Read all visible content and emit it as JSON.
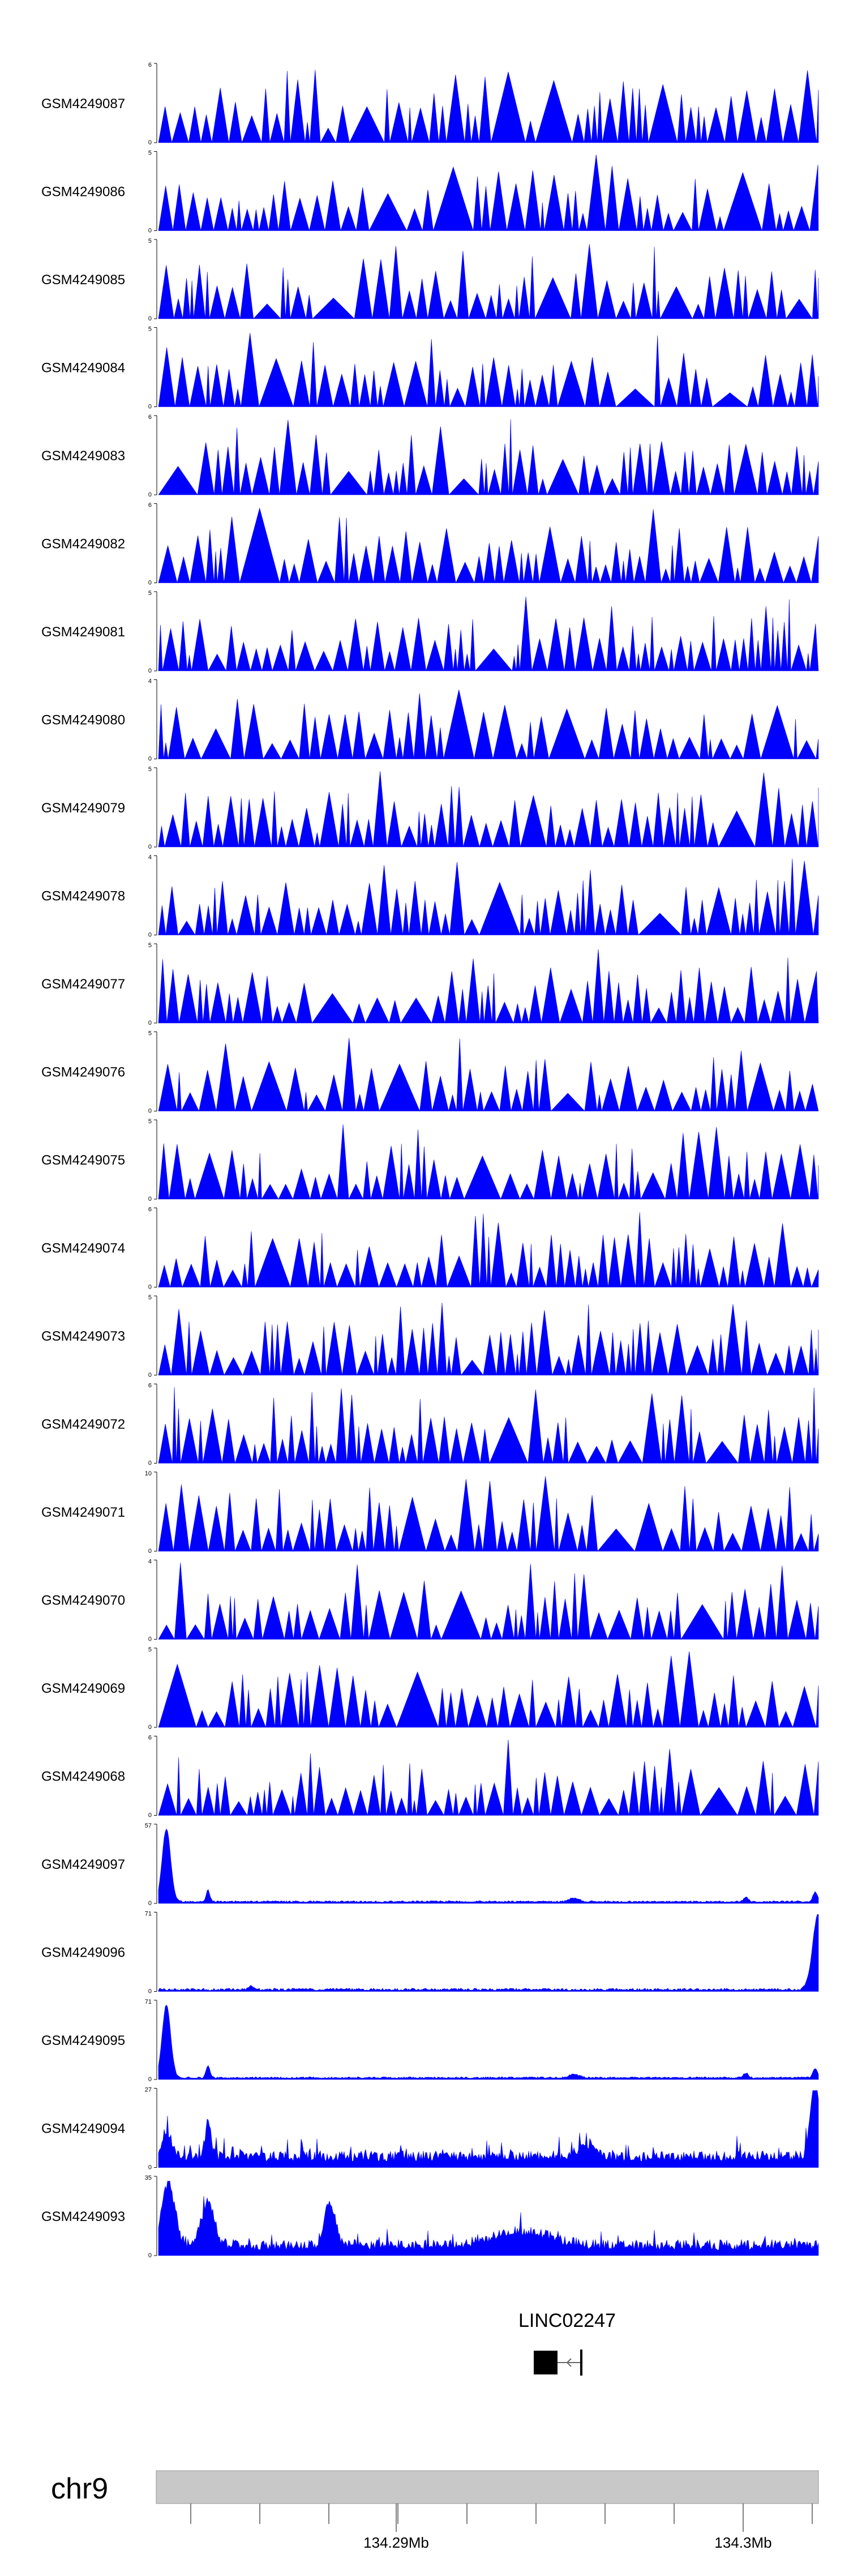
{
  "chart_data": {
    "type": "area",
    "color": "#0000ff",
    "chromosome": "chr9",
    "gene": "LINC02247",
    "x_ticks": [
      "134.29Mb",
      "134.3Mb"
    ],
    "tracks": [
      {
        "name": "GSM4249087",
        "ymax": "6",
        "ymin": "0",
        "style": "sparse"
      },
      {
        "name": "GSM4249086",
        "ymax": "5",
        "ymin": "0",
        "style": "sparse"
      },
      {
        "name": "GSM4249085",
        "ymax": "5",
        "ymin": "0",
        "style": "sparse"
      },
      {
        "name": "GSM4249084",
        "ymax": "5",
        "ymin": "0",
        "style": "sparse"
      },
      {
        "name": "GSM4249083",
        "ymax": "6",
        "ymin": "0",
        "style": "sparse"
      },
      {
        "name": "GSM4249082",
        "ymax": "6",
        "ymin": "0",
        "style": "sparse"
      },
      {
        "name": "GSM4249081",
        "ymax": "5",
        "ymin": "0",
        "style": "sparse"
      },
      {
        "name": "GSM4249080",
        "ymax": "4",
        "ymin": "0",
        "style": "sparse"
      },
      {
        "name": "GSM4249079",
        "ymax": "5",
        "ymin": "0",
        "style": "sparse"
      },
      {
        "name": "GSM4249078",
        "ymax": "4",
        "ymin": "0",
        "style": "sparse"
      },
      {
        "name": "GSM4249077",
        "ymax": "5",
        "ymin": "0",
        "style": "sparse"
      },
      {
        "name": "GSM4249076",
        "ymax": "5",
        "ymin": "0",
        "style": "sparse"
      },
      {
        "name": "GSM4249075",
        "ymax": "5",
        "ymin": "0",
        "style": "sparse"
      },
      {
        "name": "GSM4249074",
        "ymax": "6",
        "ymin": "0",
        "style": "sparse"
      },
      {
        "name": "GSM4249073",
        "ymax": "5",
        "ymin": "0",
        "style": "sparse"
      },
      {
        "name": "GSM4249072",
        "ymax": "6",
        "ymin": "0",
        "style": "sparse"
      },
      {
        "name": "GSM4249071",
        "ymax": "10",
        "ymin": "0",
        "style": "sparse"
      },
      {
        "name": "GSM4249070",
        "ymax": "4",
        "ymin": "0",
        "style": "sparse"
      },
      {
        "name": "GSM4249069",
        "ymax": "5",
        "ymin": "0",
        "style": "sparse"
      },
      {
        "name": "GSM4249068",
        "ymax": "6",
        "ymin": "0",
        "style": "sparse"
      },
      {
        "name": "GSM4249097",
        "ymax": "57",
        "ymin": "0",
        "style": "peak_left"
      },
      {
        "name": "GSM4249096",
        "ymax": "71",
        "ymin": "0",
        "style": "peak_right"
      },
      {
        "name": "GSM4249095",
        "ymax": "71",
        "ymin": "0",
        "style": "peak_left"
      },
      {
        "name": "GSM4249094",
        "ymax": "27",
        "ymin": "0",
        "style": "dense_right"
      },
      {
        "name": "GSM4249093",
        "ymax": "35",
        "ymin": "0",
        "style": "dense_left"
      }
    ]
  }
}
